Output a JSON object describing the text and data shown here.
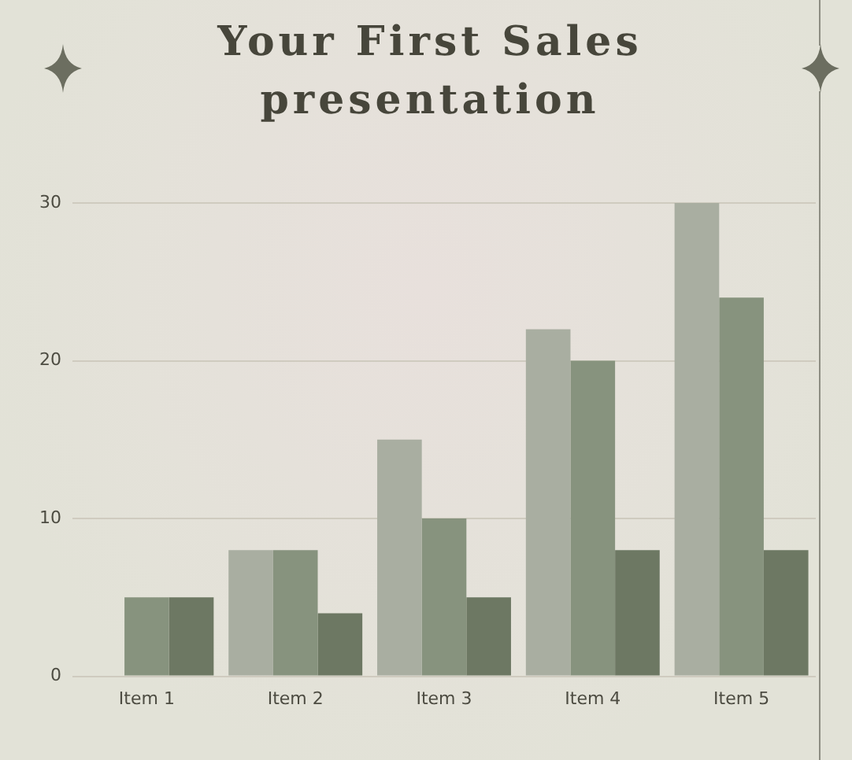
{
  "chart_data": {
    "type": "bar",
    "title": "Your First Sales presentation",
    "categories": [
      "Item 1",
      "Item 2",
      "Item 3",
      "Item 4",
      "Item 5"
    ],
    "series": [
      {
        "color": "#a9aea1",
        "values": [
          null,
          8,
          15,
          22,
          30
        ]
      },
      {
        "color": "#87937e",
        "values": [
          5,
          8,
          10,
          20,
          24
        ]
      },
      {
        "color": "#6d7863",
        "values": [
          5,
          4,
          5,
          8,
          8
        ]
      }
    ],
    "ylim": [
      0,
      30
    ],
    "yticks": [
      0,
      10,
      20,
      30
    ],
    "grid": "y"
  }
}
